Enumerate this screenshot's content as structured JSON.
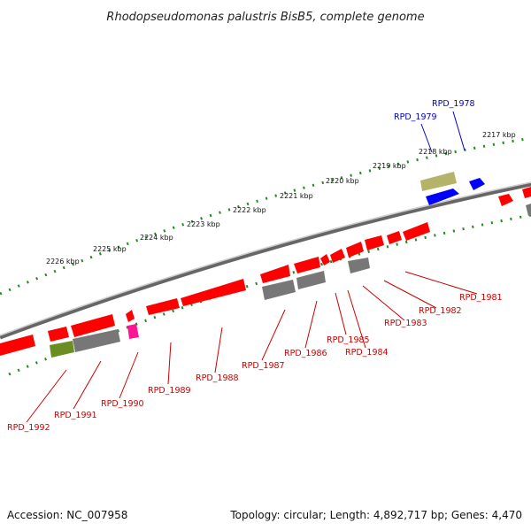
{
  "title": "Rhodopseudomonas palustris BisB5, complete genome",
  "footer": {
    "accession": "Accession: NC_007958",
    "topology": "Topology: circular; Length: 4,892,717 bp; Genes: 4,470"
  },
  "ticks": [
    "2217 kbp",
    "2218 kbp",
    "2219 kbp",
    "2220 kbp",
    "2221 kbp",
    "2222 kbp",
    "2223 kbp",
    "2224 kbp",
    "2225 kbp",
    "2226 kbp"
  ],
  "labels": {
    "forward": [
      "RPD_1978",
      "RPD_1979"
    ],
    "reverse": [
      "RPD_1981",
      "RPD_1982",
      "RPD_1983",
      "RPD_1984",
      "RPD_1985",
      "RPD_1986",
      "RPD_1987",
      "RPD_1988",
      "RPD_1989",
      "RPD_1990",
      "RPD_1991",
      "RPD_1992"
    ]
  },
  "colors": {
    "cds": "#ff0000",
    "cds_forward_label": "#0000cc",
    "cds_reverse_label": "#cc0000",
    "blue_gene": "#0000ff",
    "olive_gene": "#b5b36a",
    "gray_gene": "#777777",
    "green_gene": "#6b8e23",
    "magenta_gene": "#ff1493",
    "tick_green": "#228b22",
    "backbone": "#888888"
  }
}
